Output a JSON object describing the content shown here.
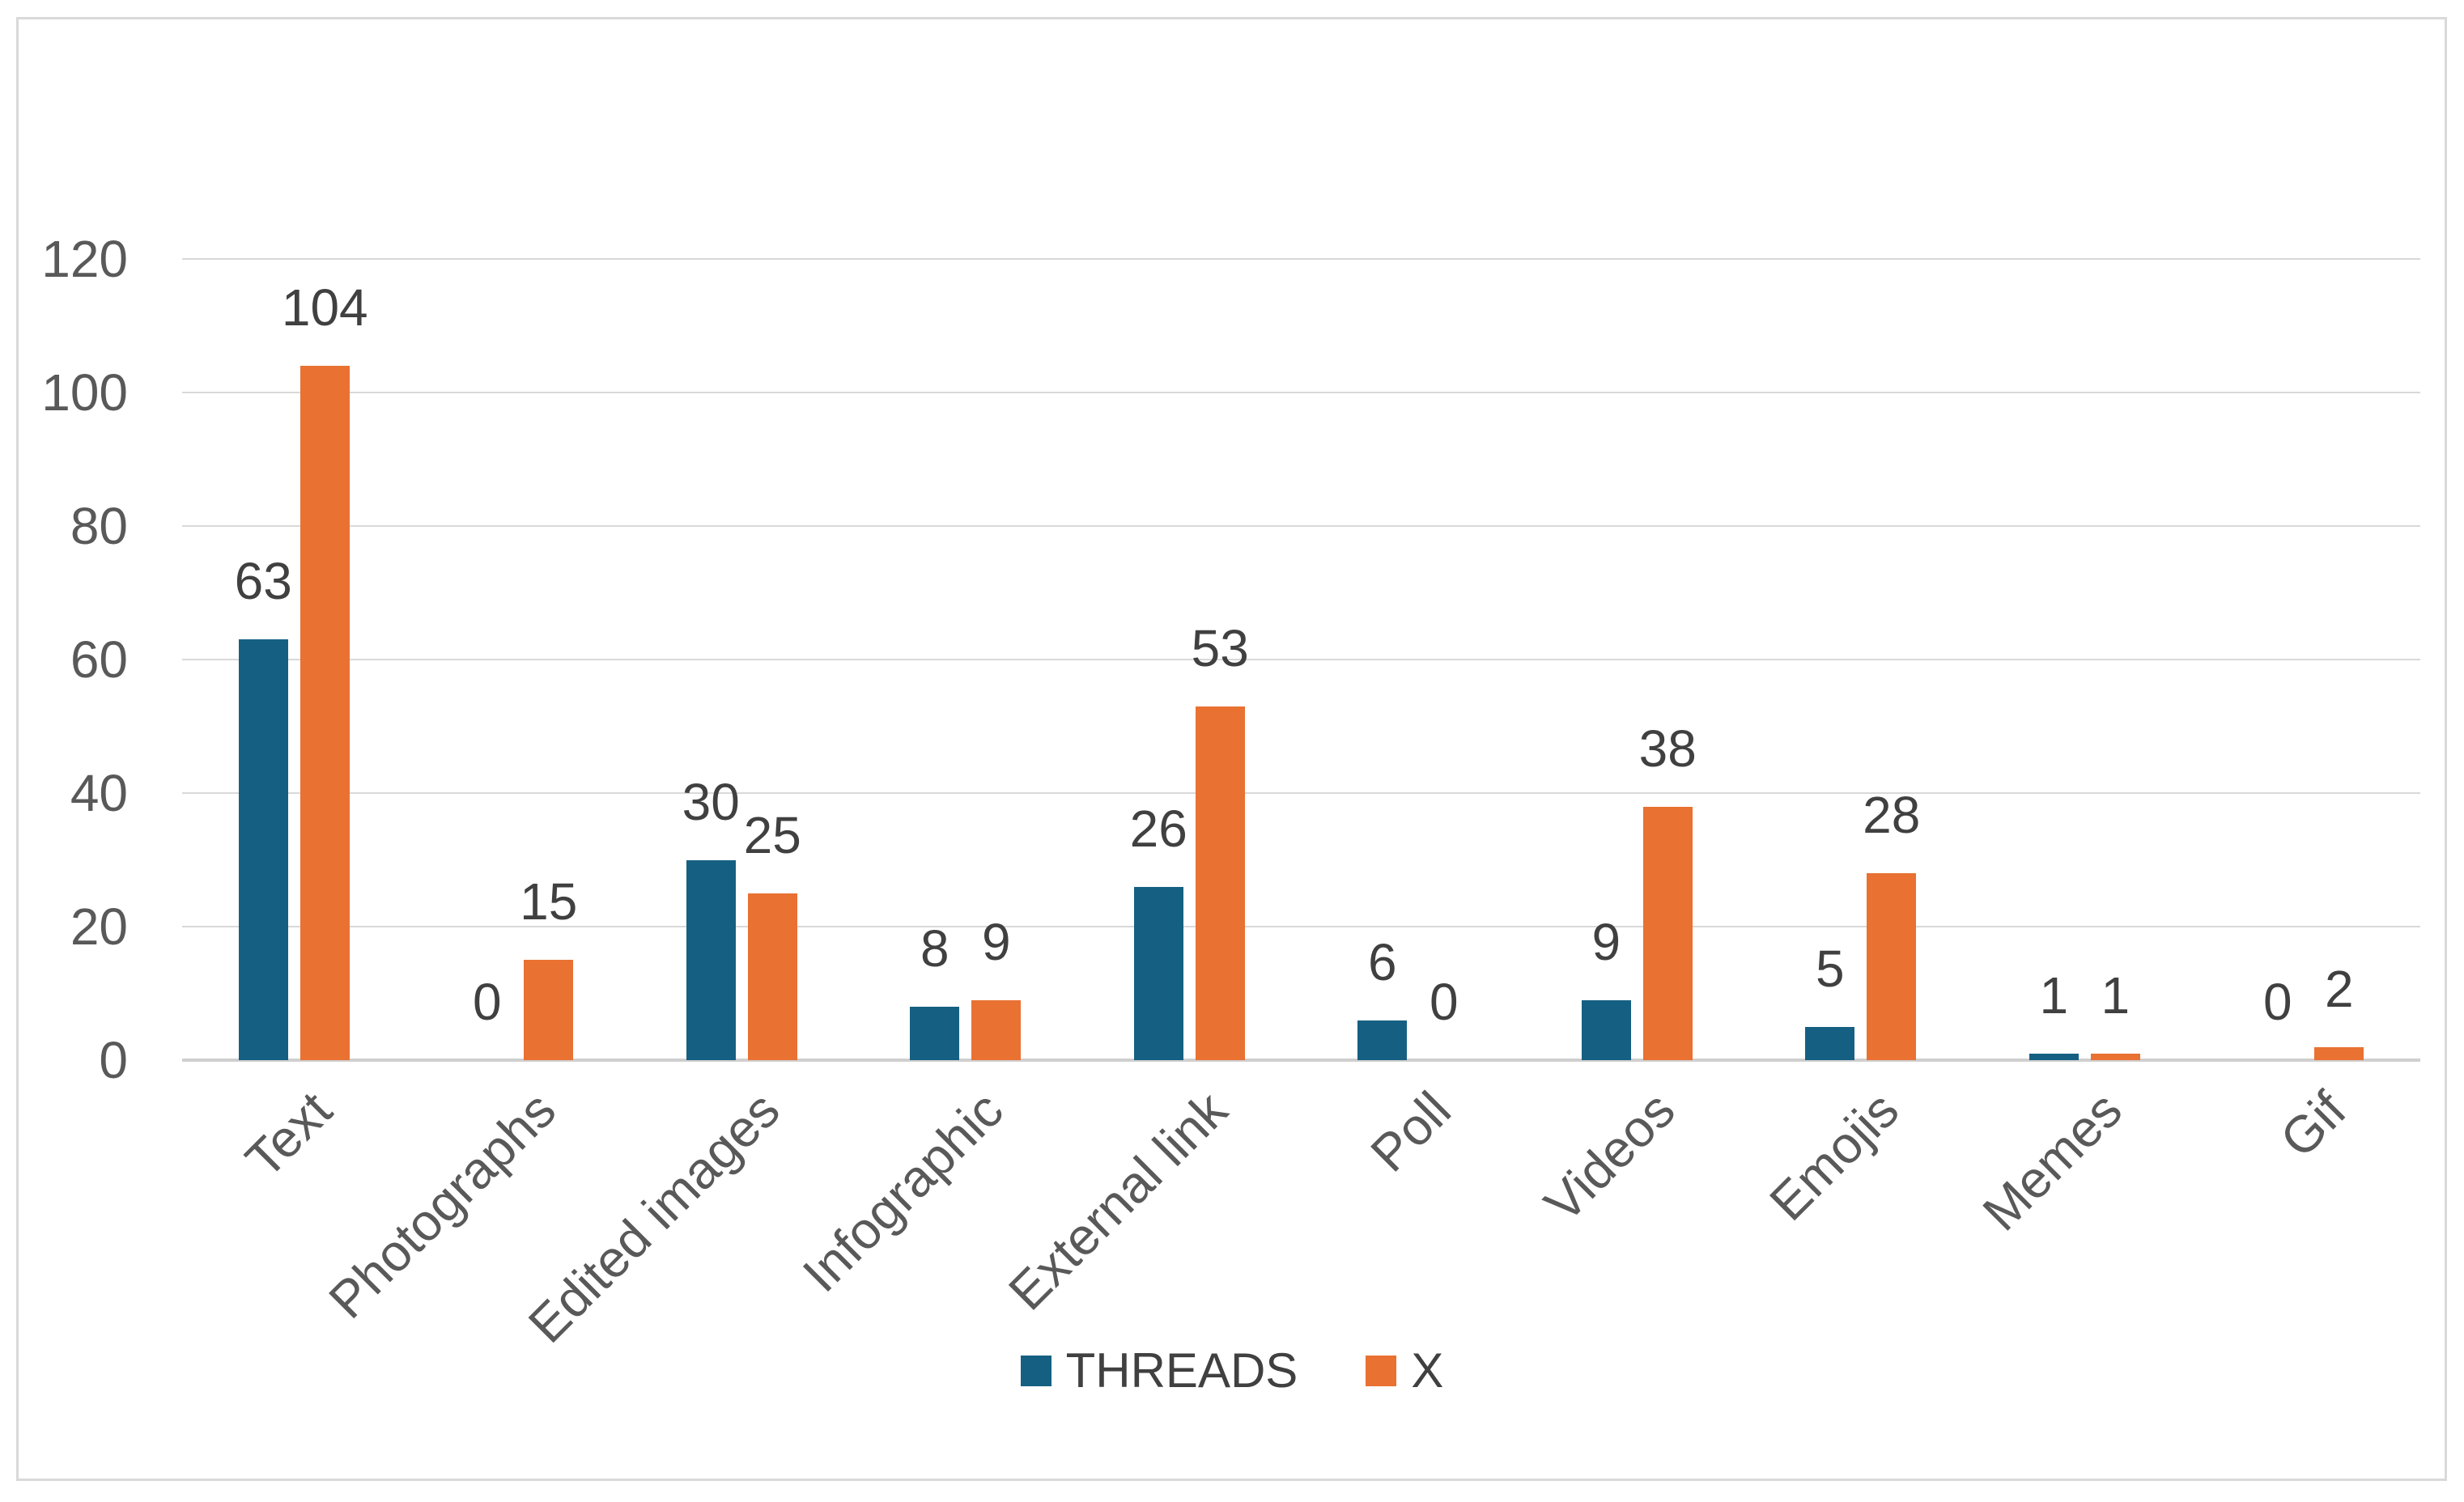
{
  "chart_data": {
    "type": "bar",
    "title": "",
    "xlabel": "",
    "ylabel": "",
    "categories": [
      "Text",
      "Photographs",
      "Edited images",
      "Infographic",
      "External link",
      "Poll",
      "Videos",
      "Emojis",
      "Memes",
      "Gif"
    ],
    "series": [
      {
        "name": "THREADS",
        "color": "#156082",
        "values": [
          63,
          0,
          30,
          8,
          26,
          6,
          9,
          5,
          1,
          0
        ]
      },
      {
        "name": "X",
        "color": "#E97132",
        "values": [
          104,
          15,
          25,
          9,
          53,
          0,
          38,
          28,
          1,
          2
        ]
      }
    ],
    "ylim": [
      0,
      120
    ],
    "yticks": [
      0,
      20,
      40,
      60,
      80,
      100,
      120
    ],
    "grid": true,
    "legend_position": "bottom",
    "data_labels": true
  },
  "colors": {
    "background": "#FFFFFF",
    "frame_border": "#D9D9D9",
    "gridline": "#D9D9D9",
    "axis_line": "#CFCFCF",
    "tick_text": "#595959",
    "category_text": "#595959",
    "data_label_text": "#404040",
    "legend_text": "#404040"
  }
}
